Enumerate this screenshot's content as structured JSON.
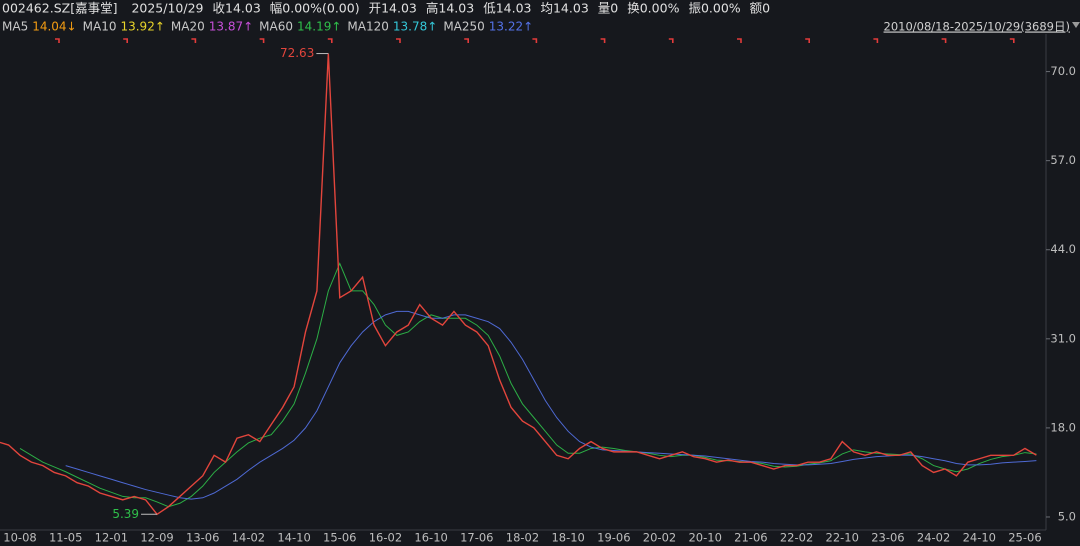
{
  "header": {
    "items": [
      "002462.SZ[嘉事堂]",
      "2025/10/29",
      "收14.03",
      "幅0.00%(0.00)",
      "开14.03",
      "高14.03",
      "低14.03",
      "均14.03",
      "量0",
      "换0.00%",
      "振0.00%",
      "额0"
    ]
  },
  "chart_data": {
    "type": "line",
    "date_range": "2010/08/18-2025/10/29(3689日)",
    "categories": [
      null,
      null,
      "10-08",
      null,
      null,
      null,
      "11-05",
      null,
      null,
      null,
      "12-01",
      null,
      null,
      null,
      "12-09",
      null,
      null,
      null,
      "13-06",
      null,
      null,
      null,
      "14-02",
      null,
      null,
      null,
      "14-10",
      null,
      null,
      null,
      "15-06",
      null,
      null,
      null,
      "16-02",
      null,
      null,
      null,
      "16-10",
      null,
      null,
      null,
      "17-06",
      null,
      null,
      null,
      "18-02",
      null,
      null,
      null,
      "18-10",
      null,
      null,
      null,
      "19-06",
      null,
      null,
      null,
      "20-02",
      null,
      null,
      null,
      "20-10",
      null,
      null,
      null,
      "21-06",
      null,
      null,
      null,
      "22-02",
      null,
      null,
      null,
      "22-10",
      null,
      null,
      null,
      "23-06",
      null,
      null,
      null,
      "24-02",
      null,
      null,
      null,
      "24-10",
      null,
      null,
      null,
      "25-06",
      null
    ],
    "values": [
      16,
      15.5,
      14,
      13,
      12.5,
      11.5,
      11,
      10,
      9.5,
      8.5,
      8,
      7.5,
      8,
      7.5,
      5.39,
      6.5,
      8,
      9.5,
      11,
      14,
      13,
      16.5,
      17,
      16,
      18.5,
      21,
      24,
      32,
      38,
      72.63,
      37,
      38,
      40,
      33,
      30,
      32,
      33,
      36,
      34,
      33,
      35,
      33,
      32,
      30,
      25,
      21,
      19,
      18,
      16,
      14,
      13.5,
      15,
      16,
      15,
      14.5,
      14.5,
      14.5,
      14,
      13.5,
      14,
      14.5,
      13.8,
      13.5,
      13,
      13.3,
      13,
      13,
      12.5,
      12,
      12.5,
      12.5,
      13,
      13,
      13.5,
      16,
      14.5,
      14,
      14.5,
      14,
      14,
      14.5,
      12.5,
      11.5,
      12,
      11,
      13,
      13.5,
      14,
      14,
      14,
      15,
      14.03
    ],
    "color": "#e2453c",
    "high": 72.63,
    "low": 5.39,
    "moving_averages": [
      {
        "name": "MA5",
        "value": 14.04,
        "label": "14.04↓",
        "color": "#f39c12"
      },
      {
        "name": "MA10",
        "value": 13.92,
        "label": "13.92↑",
        "color": "#e8d42a"
      },
      {
        "name": "MA20",
        "value": 13.87,
        "label": "13.87↑",
        "color": "#c54fd8"
      },
      {
        "name": "MA60",
        "value": 14.19,
        "label": "14.19↑",
        "color": "#2fbf4a",
        "values": [
          null,
          null,
          15,
          14,
          13,
          12.3,
          11.6,
          10.8,
          10,
          9.2,
          8.6,
          8,
          7.8,
          7.8,
          7.2,
          6.5,
          7,
          8,
          9.5,
          11.5,
          13,
          14.5,
          15.8,
          16.5,
          17,
          19,
          21.5,
          26,
          31,
          38,
          42,
          38,
          38,
          36,
          33,
          31.5,
          32,
          33.5,
          34.5,
          34,
          34,
          34,
          33,
          31.5,
          28.5,
          24.5,
          21.5,
          19.5,
          17.5,
          15.5,
          14.3,
          14.3,
          15,
          15.2,
          15,
          14.7,
          14.5,
          14.3,
          14,
          13.8,
          14,
          14,
          13.7,
          13.3,
          13.2,
          13.1,
          13,
          12.8,
          12.4,
          12.3,
          12.4,
          12.7,
          12.9,
          13.2,
          14.2,
          14.8,
          14.5,
          14.3,
          14.2,
          14.1,
          14.2,
          13.5,
          12.5,
          12,
          11.6,
          12,
          12.8,
          13.4,
          13.8,
          14,
          14.4,
          14.19
        ]
      },
      {
        "name": "MA120",
        "value": 13.78,
        "label": "13.78↑",
        "color": "#34c7d8"
      },
      {
        "name": "MA250",
        "value": 13.22,
        "label": "13.22↑",
        "color": "#5472e8",
        "values": [
          null,
          null,
          null,
          null,
          null,
          null,
          12.5,
          12,
          11.5,
          11,
          10.5,
          10,
          9.5,
          9,
          8.6,
          8.2,
          7.8,
          7.6,
          7.8,
          8.5,
          9.5,
          10.5,
          11.8,
          13,
          14,
          15,
          16.2,
          18,
          20.5,
          24,
          27.5,
          30,
          32,
          33.5,
          34.5,
          35,
          35,
          34.5,
          34,
          34,
          34.5,
          34.5,
          34,
          33.5,
          32.5,
          30.5,
          28,
          25,
          22,
          19.5,
          17.5,
          16,
          15.2,
          14.8,
          14.7,
          14.6,
          14.5,
          14.4,
          14.3,
          14.2,
          14.1,
          14,
          13.9,
          13.7,
          13.5,
          13.3,
          13.1,
          13,
          12.8,
          12.7,
          12.6,
          12.6,
          12.7,
          12.8,
          13.1,
          13.4,
          13.6,
          13.8,
          13.9,
          14,
          14,
          13.8,
          13.5,
          13.2,
          12.8,
          12.6,
          12.6,
          12.7,
          12.9,
          13,
          13.1,
          13.22
        ]
      }
    ],
    "ylim": [
      3.1,
      74.9
    ],
    "yticks": [
      {
        "value": 5,
        "label": "5.0"
      },
      {
        "value": 18,
        "label": "18.0"
      },
      {
        "value": 31,
        "label": "31.0"
      },
      {
        "value": 44,
        "label": "44.0"
      },
      {
        "value": 57,
        "label": "57.0"
      },
      {
        "value": 70,
        "label": "70.0"
      }
    ]
  }
}
